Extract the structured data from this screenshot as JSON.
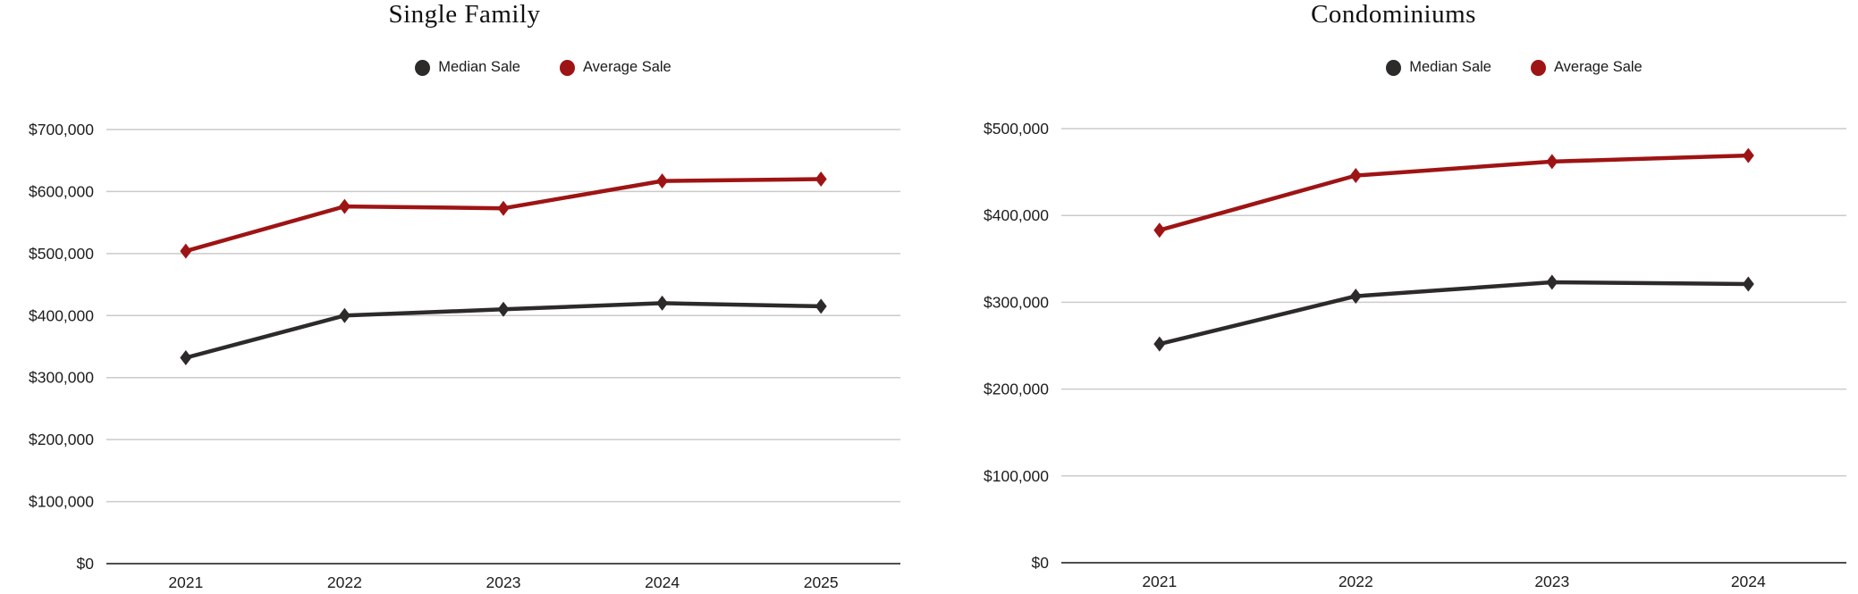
{
  "colors": {
    "median_series": "#2d2a2a",
    "average_series": "#9e1414",
    "gridline": "#cbcbcb",
    "zero_axis": "#4f4f4f",
    "tick_text": "#1d1d1d"
  },
  "chart_data": [
    {
      "type": "line",
      "title": "Single Family",
      "categories": [
        "2021",
        "2022",
        "2023",
        "2024",
        "2025"
      ],
      "series": [
        {
          "name": "Median Sale",
          "color": "#2d2a2a",
          "values": [
            332000,
            400000,
            410000,
            420000,
            415000
          ]
        },
        {
          "name": "Average Sale",
          "color": "#9e1414",
          "values": [
            504000,
            576000,
            573000,
            617000,
            620000
          ]
        }
      ],
      "xlabel": "",
      "ylabel": "",
      "ylim": [
        0,
        700000
      ],
      "ytick_step": 100000,
      "ytick_labels": [
        "$0",
        "$100,000",
        "$200,000",
        "$300,000",
        "$400,000",
        "$500,000",
        "$600,000",
        "$700,000"
      ],
      "grid": true,
      "legend_position": "top",
      "marker": "diamond"
    },
    {
      "type": "line",
      "title": "Condominiums",
      "categories": [
        "2021",
        "2022",
        "2023",
        "2024"
      ],
      "series": [
        {
          "name": "Median Sale",
          "color": "#2d2a2a",
          "values": [
            252000,
            307000,
            323000,
            321000
          ]
        },
        {
          "name": "Average Sale",
          "color": "#9e1414",
          "values": [
            383000,
            446000,
            462000,
            469000
          ]
        }
      ],
      "xlabel": "",
      "ylabel": "",
      "ylim": [
        0,
        500000
      ],
      "ytick_step": 100000,
      "ytick_labels": [
        "$0",
        "$100,000",
        "$200,000",
        "$300,000",
        "$400,000",
        "$500,000"
      ],
      "grid": true,
      "legend_position": "top",
      "marker": "diamond"
    }
  ]
}
